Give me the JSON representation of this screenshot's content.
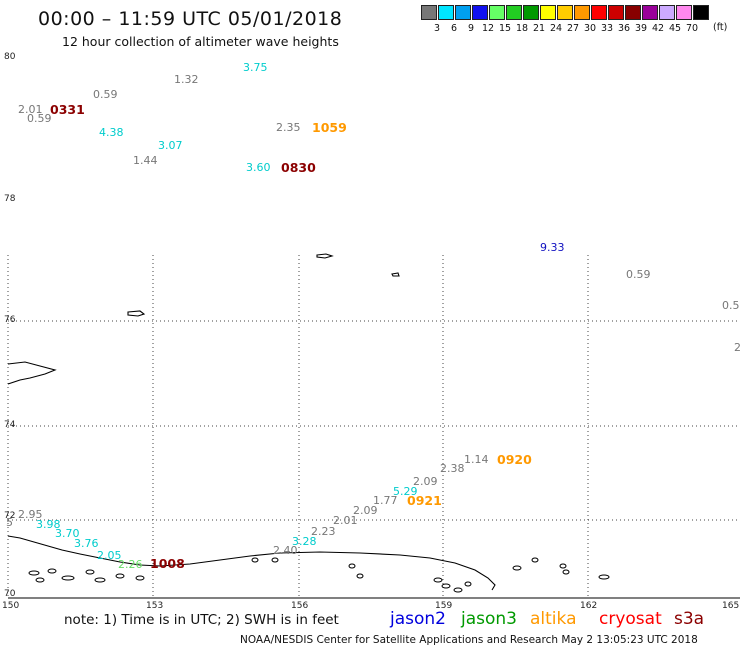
{
  "header": {
    "title": "00:00 – 11:59 UTC 05/01/2018",
    "subtitle": "12 hour collection of altimeter wave heights"
  },
  "legend": {
    "unit": "(ft)",
    "items": [
      {
        "label": "3",
        "color": "#777777"
      },
      {
        "label": "6",
        "color": "#00e5ff"
      },
      {
        "label": "9",
        "color": "#00a0f0"
      },
      {
        "label": "12",
        "color": "#1010f0"
      },
      {
        "label": "15",
        "color": "#66ff66"
      },
      {
        "label": "18",
        "color": "#22cc22"
      },
      {
        "label": "21",
        "color": "#009900"
      },
      {
        "label": "24",
        "color": "#ffff00"
      },
      {
        "label": "27",
        "color": "#ffcc00"
      },
      {
        "label": "30",
        "color": "#ff9900"
      },
      {
        "label": "33",
        "color": "#ff0000"
      },
      {
        "label": "36",
        "color": "#cc0000"
      },
      {
        "label": "39",
        "color": "#880000"
      },
      {
        "label": "42",
        "color": "#990099"
      },
      {
        "label": "45",
        "color": "#ccaaff"
      },
      {
        "label": "70",
        "color": "#ff88ee"
      },
      {
        "label": "",
        "color": "#000000"
      }
    ]
  },
  "axes": {
    "lat_labels": [
      "80",
      "78",
      "76",
      "74",
      "72",
      "70"
    ],
    "lon_labels": [
      "150",
      "153",
      "156",
      "159",
      "162",
      "165"
    ]
  },
  "wave_heights": [
    {
      "value": "3.75",
      "color": "#00cccc"
    },
    {
      "value": "1.32",
      "color": "#777777"
    },
    {
      "value": "0.59",
      "color": "#777777"
    },
    {
      "value": "2.01",
      "color": "#777777"
    },
    {
      "value": "0.59",
      "color": "#777777"
    },
    {
      "value": "4.38",
      "color": "#00cccc"
    },
    {
      "value": "3.07",
      "color": "#00cccc"
    },
    {
      "value": "1.44",
      "color": "#777777"
    },
    {
      "value": "2.35",
      "color": "#777777"
    },
    {
      "value": "3.60",
      "color": "#00cccc"
    },
    {
      "value": "9.33",
      "color": "#1010c0"
    },
    {
      "value": "0.59",
      "color": "#777777"
    },
    {
      "value": "0.5",
      "color": "#777777"
    },
    {
      "value": "2",
      "color": "#777777"
    },
    {
      "value": "1.14",
      "color": "#777777"
    },
    {
      "value": "2.38",
      "color": "#777777"
    },
    {
      "value": "2.09",
      "color": "#777777"
    },
    {
      "value": "5.29",
      "color": "#00cccc"
    },
    {
      "value": "1.77",
      "color": "#777777"
    },
    {
      "value": "2.09",
      "color": "#777777"
    },
    {
      "value": "2.01",
      "color": "#777777"
    },
    {
      "value": "2.23",
      "color": "#777777"
    },
    {
      "value": "3.28",
      "color": "#00cccc"
    },
    {
      "value": "2.40",
      "color": "#777777"
    },
    {
      "value": "2.95",
      "color": "#777777"
    },
    {
      "value": "3.98",
      "color": "#00cccc"
    },
    {
      "value": "3.70",
      "color": "#00cccc"
    },
    {
      "value": "3.76",
      "color": "#00cccc"
    },
    {
      "value": "2.05",
      "color": "#00cccc"
    },
    {
      "value": "2.26",
      "color": "#66dd66"
    },
    {
      "value": "5",
      "color": "#777777"
    }
  ],
  "pass_times": [
    {
      "value": "0331",
      "color": "#8b0000"
    },
    {
      "value": "1059",
      "color": "#ff9900"
    },
    {
      "value": "0830",
      "color": "#8b0000"
    },
    {
      "value": "0920",
      "color": "#ff9900"
    },
    {
      "value": "0921",
      "color": "#ff9900"
    },
    {
      "value": "1008",
      "color": "#8b0000"
    }
  ],
  "footer": {
    "note": "note:  1) Time is in UTC;  2) SWH is in feet",
    "satellites": [
      {
        "name": "jason2",
        "color": "#0000dd"
      },
      {
        "name": "jason3",
        "color": "#009900"
      },
      {
        "name": "altika",
        "color": "#ff9900"
      },
      {
        "name": "cryosat",
        "color": "#ff0000"
      },
      {
        "name": "s3a",
        "color": "#8b0000"
      }
    ],
    "credit": "NOAA/NESDIS Center for Satellite Applications and Research     May  2 13:05:23 UTC 2018"
  }
}
